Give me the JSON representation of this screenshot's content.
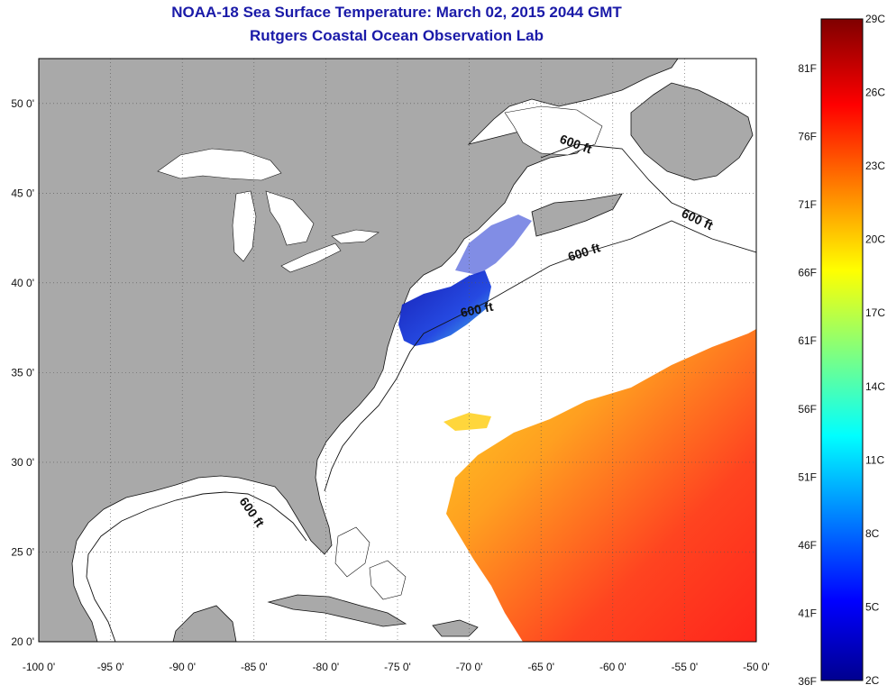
{
  "title": "NOAA-18 Sea Surface Temperature:  March 02, 2015 2044 GMT",
  "subtitle": "Rutgers Coastal Ocean Observation Lab",
  "map": {
    "lon_range": [
      -100,
      -50
    ],
    "lat_range": [
      20,
      52.5
    ],
    "x_ticks": [
      "-100 0'",
      "-95 0'",
      "-90 0'",
      "-85 0'",
      "-80 0'",
      "-75 0'",
      "-70 0'",
      "-65 0'",
      "-60 0'",
      "-55 0'",
      "-50 0'"
    ],
    "y_ticks": [
      "20 0'",
      "25 0'",
      "30 0'",
      "35 0'",
      "40 0'",
      "45 0'",
      "50 0'"
    ],
    "grid": "dotted",
    "land_color": "#a9a9a9",
    "ocean_color": "#ffffff",
    "bathymetry_labels": [
      "600 ft",
      "600 ft",
      "600 ft",
      "600 ft",
      "600 ft"
    ]
  },
  "colorbar": {
    "celsius_labels": [
      "29C",
      "26C",
      "23C",
      "20C",
      "17C",
      "14C",
      "11C",
      "8C",
      "5C",
      "2C"
    ],
    "fahrenheit_labels": [
      "81F",
      "76F",
      "71F",
      "66F",
      "61F",
      "56F",
      "51F",
      "46F",
      "41F",
      "36F"
    ],
    "colors": [
      "#7f0000",
      "#ff0000",
      "#ff7f00",
      "#ffff00",
      "#7fff7f",
      "#00ffff",
      "#007fff",
      "#0000ff",
      "#00008f"
    ]
  }
}
